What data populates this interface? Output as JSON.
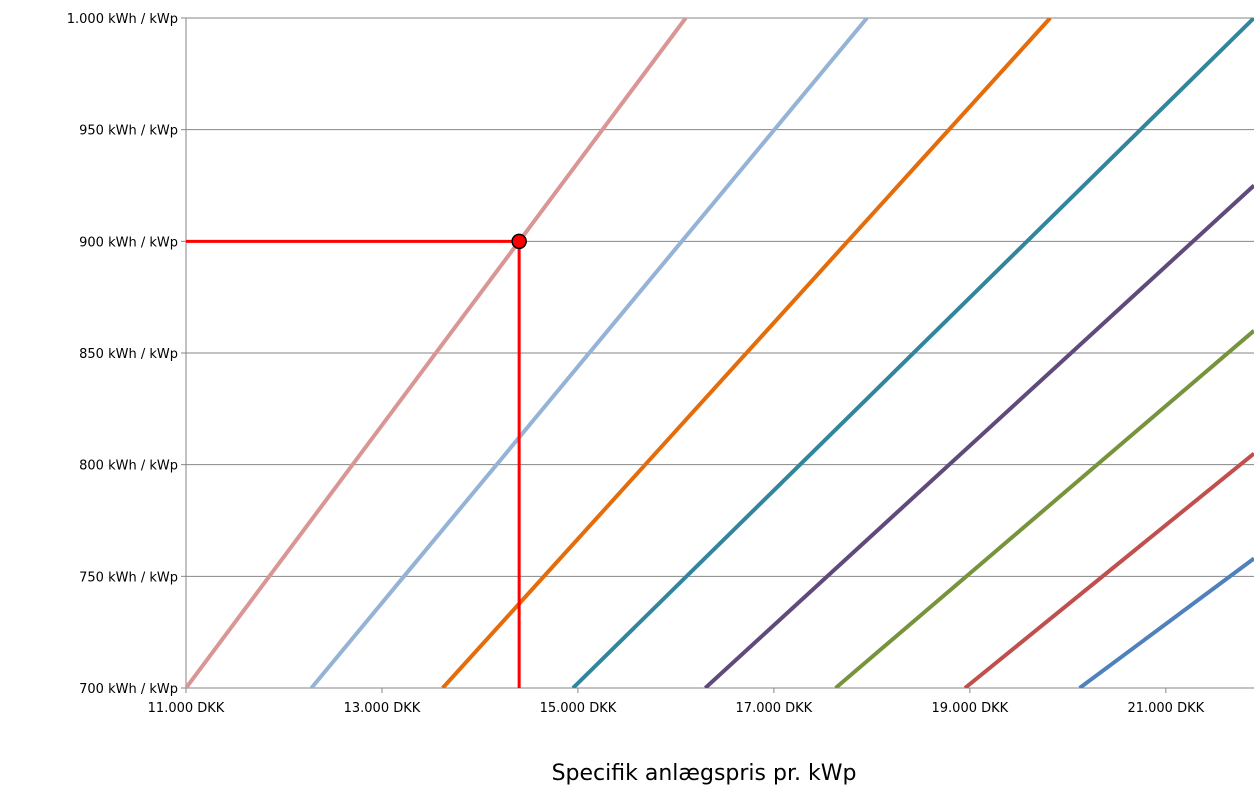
{
  "chart_data": {
    "type": "line",
    "title": "",
    "xlabel": "Specifik anlægspris pr. kWp",
    "ylabel": "",
    "xlim": [
      11000,
      21900
    ],
    "ylim": [
      700,
      1000
    ],
    "x_ticks": [
      {
        "value": 11000,
        "label": "11.000 DKK"
      },
      {
        "value": 13000,
        "label": "13.000 DKK"
      },
      {
        "value": 15000,
        "label": "15.000 DKK"
      },
      {
        "value": 17000,
        "label": "17.000 DKK"
      },
      {
        "value": 19000,
        "label": "19.000 DKK"
      },
      {
        "value": 21000,
        "label": "21.000 DKK"
      }
    ],
    "y_ticks": [
      {
        "value": 700,
        "label": "700 kWh / kWp"
      },
      {
        "value": 750,
        "label": "750 kWh / kWp"
      },
      {
        "value": 800,
        "label": "800 kWh / kWp"
      },
      {
        "value": 850,
        "label": "850 kWh / kWp"
      },
      {
        "value": 900,
        "label": "900 kWh / kWp"
      },
      {
        "value": 950,
        "label": "950 kWh / kWp"
      },
      {
        "value": 1000,
        "label": "1.000 kWh / kWp"
      }
    ],
    "grid": {
      "horizontal": true,
      "vertical": false
    },
    "legend": "none",
    "series": [
      {
        "color": "#d99694",
        "points": [
          [
            11000,
            700
          ],
          [
            16100,
            1000
          ]
        ]
      },
      {
        "color": "#95b3d7",
        "points": [
          [
            12280,
            700
          ],
          [
            17950,
            1000
          ]
        ]
      },
      {
        "color": "#e46c0a",
        "points": [
          [
            13620,
            700
          ],
          [
            19820,
            1000
          ]
        ]
      },
      {
        "color": "#31859c",
        "points": [
          [
            14950,
            700
          ],
          [
            21900,
            1000
          ]
        ]
      },
      {
        "color": "#604a7b",
        "points": [
          [
            16300,
            700
          ],
          [
            21900,
            925
          ]
        ]
      },
      {
        "color": "#77933c",
        "points": [
          [
            17630,
            700
          ],
          [
            21900,
            860
          ]
        ]
      },
      {
        "color": "#c0504d",
        "points": [
          [
            18950,
            700
          ],
          [
            21900,
            805
          ]
        ]
      },
      {
        "color": "#4f81bd",
        "points": [
          [
            20120,
            700
          ],
          [
            21900,
            758
          ]
        ]
      }
    ],
    "annotation": {
      "x": 14400,
      "y": 900,
      "color": "#ff0000"
    }
  }
}
